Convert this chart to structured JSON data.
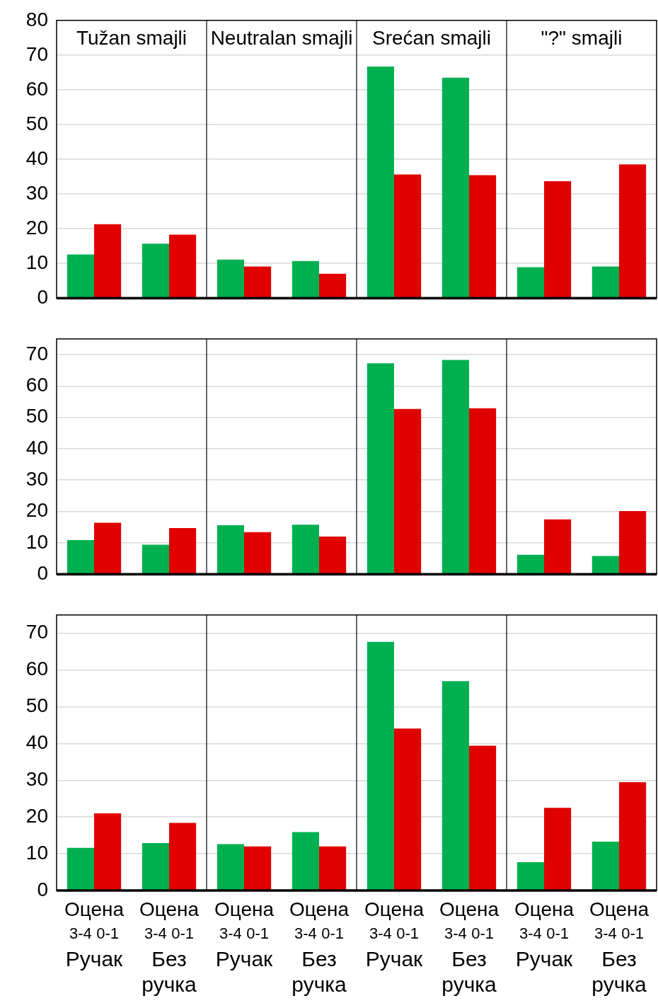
{
  "chart_data": [
    {
      "type": "bar",
      "categories": [
        null,
        null,
        null,
        null,
        null,
        null,
        null,
        null
      ],
      "series": [
        {
          "color": "#00b050",
          "values": [
            12.6,
            15.7,
            11.1,
            10.7,
            66.7,
            63.5,
            8.9,
            9.1
          ]
        },
        {
          "color": "#e00000",
          "values": [
            21.3,
            18.3,
            9.1,
            7.0,
            35.6,
            35.4,
            33.7,
            38.5
          ]
        }
      ],
      "annotations": [
        "Tužan smajli",
        "Neutralan smajli",
        "Srećan smajli",
        "\"?\" smajli"
      ],
      "ylim": [
        0,
        80
      ],
      "yticks": [
        0,
        10,
        20,
        30,
        40,
        50,
        60,
        70,
        80
      ],
      "grid": "y",
      "tick_labels": "y"
    },
    {
      "type": "bar",
      "categories": [
        null,
        null,
        null,
        null,
        null,
        null,
        null,
        null
      ],
      "series": [
        {
          "color": "#00b050",
          "values": [
            10.9,
            9.4,
            15.6,
            15.8,
            67.2,
            68.3,
            6.2,
            5.8
          ]
        },
        {
          "color": "#e00000",
          "values": [
            16.4,
            14.7,
            13.4,
            12.0,
            52.7,
            52.9,
            17.5,
            20.1
          ]
        }
      ],
      "ylim": [
        0,
        75
      ],
      "yticks": [
        0,
        10,
        20,
        30,
        40,
        50,
        60,
        70
      ],
      "grid": "y",
      "tick_labels": "y"
    },
    {
      "type": "bar",
      "categories": [
        "Ручак",
        "Без ручка",
        "Ручак",
        "Без ручка",
        "Ручак",
        "Без ручка",
        "Ручак",
        "Без ручка"
      ],
      "xlabel": "Оцена",
      "series": [
        {
          "name": "3-4",
          "color": "#00b050",
          "values": [
            11.6,
            12.9,
            12.6,
            15.9,
            67.7,
            57.0,
            7.7,
            13.3
          ]
        },
        {
          "name": "0-1",
          "color": "#e00000",
          "values": [
            21.0,
            18.4,
            12.0,
            12.0,
            44.1,
            39.4,
            22.5,
            29.5
          ]
        }
      ],
      "ylim": [
        0,
        75
      ],
      "yticks": [
        0,
        10,
        20,
        30,
        40,
        50,
        60,
        70
      ],
      "grid": "y"
    }
  ]
}
